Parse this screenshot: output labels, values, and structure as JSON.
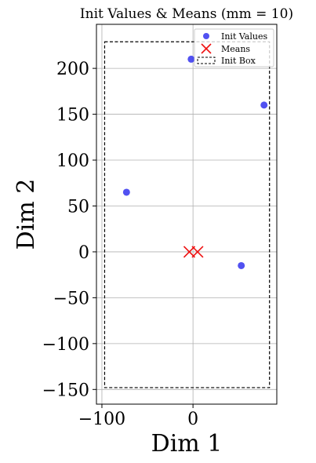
{
  "chart_data": {
    "type": "scatter",
    "title": "Init Values & Means (mm = 10)",
    "xlabel": "Dim 1",
    "ylabel": "Dim 2",
    "xlim": [
      -106,
      92
    ],
    "ylim": [
      -166,
      248
    ],
    "xticks": [
      -100,
      0
    ],
    "xtick_labels": [
      "−100",
      "0"
    ],
    "yticks": [
      -150,
      -100,
      -50,
      0,
      50,
      100,
      150,
      200
    ],
    "ytick_labels": [
      "−150",
      "−100",
      "−50",
      "0",
      "50",
      "100",
      "150",
      "200"
    ],
    "grid": true,
    "legend_position": "upper-right",
    "series": [
      {
        "name": "Init Values",
        "marker": "circle",
        "color": "#3333ee",
        "points": [
          [
            -73,
            65
          ],
          [
            -2,
            210
          ],
          [
            78,
            160
          ],
          [
            53,
            -15
          ]
        ]
      },
      {
        "name": "Means",
        "marker": "x",
        "color": "#ee1111",
        "points": [
          [
            -4,
            0
          ],
          [
            5,
            0
          ]
        ]
      }
    ],
    "init_box": {
      "name": "Init Box",
      "style": "dashed",
      "color": "#000000",
      "x": [
        -97,
        84
      ],
      "y": [
        -148,
        229
      ]
    }
  }
}
